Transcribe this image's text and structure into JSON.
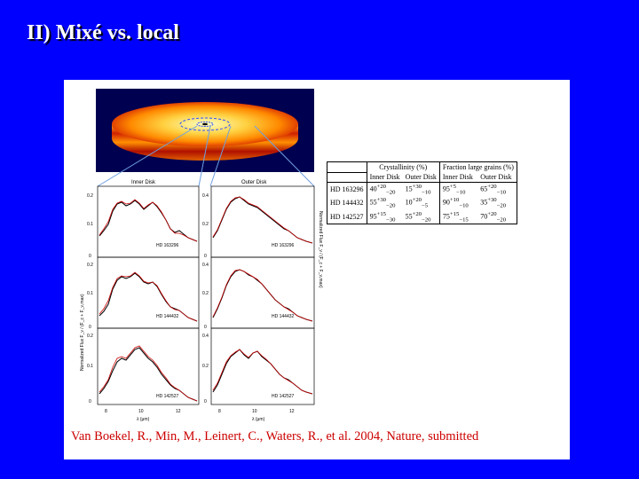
{
  "title": "II) Mixé vs. local",
  "figure": {
    "inner_disk_label": "Inner Disk",
    "outer_disk_label": "Outer Disk",
    "ylabel_left": "Normalized Flux  F_ν / (F_c + F_ν,max)",
    "ylabel_right": "Normalized Flux  F_ν / (F_c + F_ν,max)",
    "xlabel": "λ (μm)",
    "x_ticks": [
      "8",
      "10",
      "12"
    ],
    "y_ticks": [
      "0",
      "0.1",
      "0.2"
    ],
    "y_ticks_right": [
      "0",
      "0.2",
      "0.4"
    ],
    "star_labels": [
      "HD 163296",
      "HD 144432",
      "HD 142527"
    ]
  },
  "table": {
    "header_groups": [
      "Crystallinity (%)",
      "Fraction large grains (%)"
    ],
    "subheaders": [
      "Inner Disk",
      "Outer Disk",
      "Inner Disk",
      "Outer Disk"
    ],
    "rows": [
      {
        "star": "HD 163296",
        "cells": [
          {
            "v": "40",
            "up": "+20",
            "dn": "−20"
          },
          {
            "v": "15",
            "up": "+30",
            "dn": "−10"
          },
          {
            "v": "95",
            "up": "+5",
            "dn": "−10"
          },
          {
            "v": "65",
            "up": "+20",
            "dn": "−10"
          }
        ]
      },
      {
        "star": "HD 144432",
        "cells": [
          {
            "v": "55",
            "up": "+30",
            "dn": "−20"
          },
          {
            "v": "10",
            "up": "+20",
            "dn": "−5"
          },
          {
            "v": "90",
            "up": "+10",
            "dn": "−10"
          },
          {
            "v": "35",
            "up": "+30",
            "dn": "−20"
          }
        ]
      },
      {
        "star": "HD 142527",
        "cells": [
          {
            "v": "95",
            "up": "+15",
            "dn": "−30"
          },
          {
            "v": "55",
            "up": "+20",
            "dn": "−20"
          },
          {
            "v": "75",
            "up": "+15",
            "dn": "−15"
          },
          {
            "v": "70",
            "up": "+20",
            "dn": "−20"
          }
        ]
      }
    ]
  },
  "citation": "Van Boekel, R., Min, M., Leinert, C., Waters, R., et al. 2004, Nature, submitted"
}
